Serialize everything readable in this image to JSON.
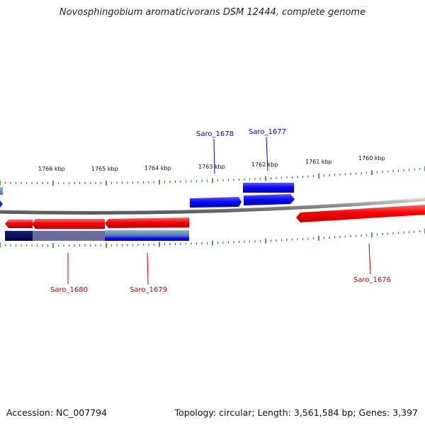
{
  "title": "Novosphingobium aromaticivorans DSM 12444, complete genome",
  "footer": {
    "accession": "Accession: NC_007794",
    "summary": "Topology: circular; Length: 3,561,584 bp; Genes: 3,397"
  },
  "scale_labels": [
    "1766 kbp",
    "1765 kbp",
    "1764 kbp",
    "1763 kbp",
    "1762 kbp",
    "1761 kbp",
    "1760 kbp"
  ],
  "genes": [
    {
      "name": "Saro_1678",
      "strand": "forward",
      "color": "#0000cc"
    },
    {
      "name": "Saro_1677",
      "strand": "forward",
      "color": "#0000cc"
    },
    {
      "name": "Saro_1680",
      "strand": "reverse",
      "color": "#cc0000"
    },
    {
      "name": "Saro_1679",
      "strand": "reverse",
      "color": "#cc0000"
    },
    {
      "name": "Saro_1676",
      "strand": "reverse",
      "color": "#cc0000"
    }
  ],
  "colors": {
    "backbone": "#8a8a8a",
    "forward_gene": "#1a1aff",
    "reverse_gene": "#ff0000",
    "tick": "#1a8a1a"
  }
}
